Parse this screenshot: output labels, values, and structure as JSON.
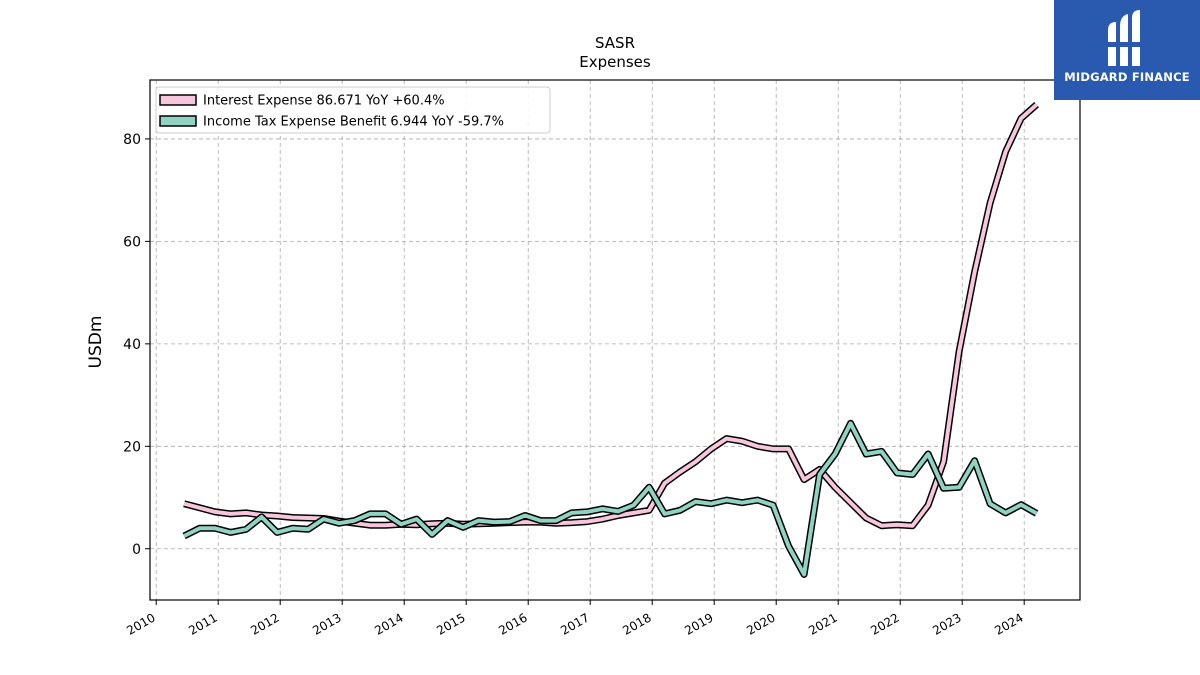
{
  "chart_data": {
    "type": "line",
    "title": "SASR",
    "subtitle": "Expenses",
    "ylabel": "USDm",
    "xlabel": "",
    "xlim": [
      2009.9,
      2024.9
    ],
    "ylim": [
      -10,
      91.5
    ],
    "yticks": [
      0,
      20,
      40,
      60,
      80
    ],
    "xticks": [
      "2010",
      "2011",
      "2012",
      "2013",
      "2014",
      "2015",
      "2016",
      "2017",
      "2018",
      "2019",
      "2020",
      "2021",
      "2022",
      "2023",
      "2024"
    ],
    "grid": true,
    "legend_position": "top-left",
    "series": [
      {
        "name": "Interest Expense",
        "legend_label": "Interest Expense  86.671 YoY +60.4%",
        "color": "#f7c6dc",
        "x": [
          2010.45,
          2010.7,
          2010.95,
          2011.2,
          2011.45,
          2011.7,
          2011.95,
          2012.2,
          2012.45,
          2012.7,
          2012.95,
          2013.2,
          2013.45,
          2013.7,
          2013.95,
          2014.2,
          2014.45,
          2014.7,
          2014.95,
          2015.2,
          2015.45,
          2015.7,
          2015.95,
          2016.2,
          2016.45,
          2016.7,
          2016.95,
          2017.2,
          2017.45,
          2017.7,
          2017.95,
          2018.2,
          2018.45,
          2018.7,
          2018.95,
          2019.2,
          2019.45,
          2019.7,
          2019.95,
          2020.2,
          2020.45,
          2020.7,
          2020.95,
          2021.2,
          2021.45,
          2021.7,
          2021.95,
          2022.2,
          2022.45,
          2022.7,
          2022.95,
          2023.2,
          2023.45,
          2023.7,
          2023.95,
          2024.2
        ],
        "values": [
          8.8,
          8.0,
          7.2,
          6.8,
          7.0,
          6.6,
          6.4,
          6.1,
          6.0,
          5.9,
          5.4,
          5.0,
          4.6,
          4.6,
          4.8,
          4.7,
          4.9,
          5.0,
          4.8,
          4.9,
          5.0,
          5.1,
          5.2,
          5.2,
          5.0,
          5.1,
          5.3,
          5.8,
          6.5,
          7.0,
          7.5,
          12.8,
          15.0,
          17.0,
          19.5,
          21.5,
          21.0,
          20.0,
          19.5,
          19.5,
          13.5,
          15.5,
          12.0,
          9.0,
          6.0,
          4.5,
          4.7,
          4.5,
          8.5,
          17.0,
          38.5,
          54.0,
          67.5,
          77.5,
          84.0,
          86.7
        ]
      },
      {
        "name": "Income Tax Expense Benefit",
        "legend_label": "Income Tax Expense Benefit  6.944 YoY -59.7%",
        "color": "#8fd3c3",
        "x": [
          2010.45,
          2010.7,
          2010.95,
          2011.2,
          2011.45,
          2011.7,
          2011.95,
          2012.2,
          2012.45,
          2012.7,
          2012.95,
          2013.2,
          2013.45,
          2013.7,
          2013.95,
          2014.2,
          2014.45,
          2014.7,
          2014.95,
          2015.2,
          2015.45,
          2015.7,
          2015.95,
          2016.2,
          2016.45,
          2016.7,
          2016.95,
          2017.2,
          2017.45,
          2017.7,
          2017.95,
          2018.2,
          2018.45,
          2018.7,
          2018.95,
          2019.2,
          2019.45,
          2019.7,
          2019.95,
          2020.2,
          2020.45,
          2020.7,
          2020.95,
          2021.2,
          2021.45,
          2021.7,
          2021.95,
          2022.2,
          2022.45,
          2022.7,
          2022.95,
          2023.2,
          2023.45,
          2023.7,
          2023.95,
          2024.2
        ],
        "values": [
          2.5,
          4.0,
          4.0,
          3.2,
          3.8,
          6.2,
          3.2,
          4.0,
          3.8,
          5.8,
          5.0,
          5.5,
          6.8,
          6.8,
          4.8,
          5.8,
          2.8,
          5.5,
          4.2,
          5.5,
          5.2,
          5.3,
          6.5,
          5.5,
          5.5,
          7.0,
          7.2,
          7.8,
          7.3,
          8.5,
          12.0,
          6.8,
          7.5,
          9.2,
          8.8,
          9.5,
          9.0,
          9.5,
          8.5,
          0.5,
          -5.0,
          14.5,
          18.5,
          24.5,
          18.5,
          19.0,
          14.8,
          14.5,
          18.5,
          11.8,
          12.0,
          17.2,
          8.8,
          7.0,
          8.6,
          6.9
        ]
      }
    ]
  },
  "logo": {
    "text": "MIDGARD FINANCE",
    "color": "#2a5ab0"
  }
}
